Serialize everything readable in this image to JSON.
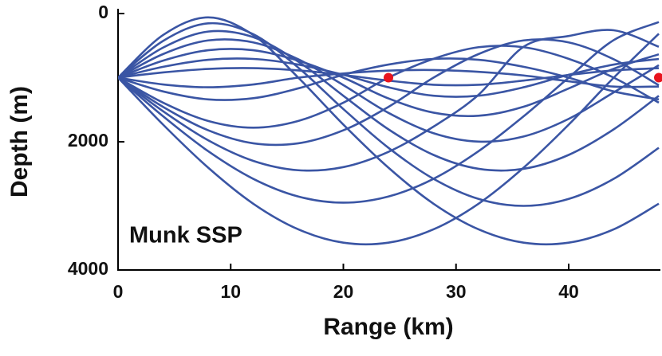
{
  "chart_data": {
    "type": "line",
    "annotation": "Munk SSP",
    "x_label": "Range (km)",
    "y_label": "Depth (m)",
    "xlim": [
      0,
      48
    ],
    "xticks": [
      0,
      10,
      20,
      30,
      40
    ],
    "ylim": [
      0,
      4000
    ],
    "yticks": [
      0,
      2000,
      4000
    ],
    "y_inverted": true,
    "x": [
      0,
      4,
      8,
      12,
      16,
      20,
      24,
      28,
      32,
      36,
      40,
      44,
      48
    ],
    "series": [
      {
        "color": "#3a55a4",
        "values": [
          1000,
          335,
          60,
          335,
          1000,
          1732,
          2404,
          2966,
          3366,
          3574,
          3574,
          3366,
          2966
        ]
      },
      {
        "color": "#3a55a4",
        "values": [
          1000,
          427,
          153,
          322,
          844,
          1490,
          2094,
          2578,
          2892,
          3000,
          2892,
          2578,
          2094
        ]
      },
      {
        "color": "#3a55a4",
        "values": [
          1000,
          531,
          281,
          368,
          750,
          1283,
          1806,
          2205,
          2422,
          2422,
          2205,
          1806,
          1283
        ]
      },
      {
        "color": "#3a55a4",
        "values": [
          1000,
          632,
          419,
          450,
          714,
          1116,
          1549,
          1866,
          1998,
          1918,
          1643,
          1230,
          806
        ]
      },
      {
        "color": "#3a55a4",
        "values": [
          1000,
          735,
          572,
          572,
          735,
          1000,
          1324,
          1546,
          1594,
          1454,
          1169,
          861,
          636
        ]
      },
      {
        "color": "#3a55a4",
        "values": [
          1000,
          831,
          721,
          708,
          796,
          955,
          1150,
          1282,
          1282,
          1150,
          955,
          796,
          708
        ]
      },
      {
        "color": "#3a55a4",
        "values": [
          1000,
          919,
          864,
          852,
          887,
          958,
          1046,
          1111,
          1111,
          1046,
          958,
          887,
          852
        ]
      },
      {
        "color": "#3a55a4",
        "values": [
          1000,
          1106,
          1150,
          1106,
          1000,
          935,
          891,
          881,
          909,
          966,
          1057,
          1139,
          1139
        ]
      },
      {
        "color": "#3a55a4",
        "values": [
          1000,
          1215,
          1339,
          1321,
          1167,
          955,
          796,
          708,
          721,
          831,
          1000,
          1215,
          1339
        ]
      },
      {
        "color": "#3a55a4",
        "values": [
          1000,
          1390,
          1675,
          1780,
          1675,
          1390,
          1000,
          706,
          525,
          525,
          706,
          1000,
          1390
        ]
      },
      {
        "color": "#3a55a4",
        "values": [
          1000,
          1456,
          1821,
          2024,
          2024,
          1821,
          1456,
          1000,
          632,
          419,
          450,
          714,
          1118
        ]
      },
      {
        "color": "#3a55a4",
        "values": [
          1000,
          1524,
          1977,
          2298,
          2444,
          2395,
          2157,
          1764,
          1267,
          518,
          350,
          261,
          518
        ]
      },
      {
        "color": "#3a55a4",
        "values": [
          1000,
          1603,
          2147,
          2578,
          2854,
          2950,
          2854,
          2578,
          2147,
          1603,
          1000,
          414,
          133
        ]
      },
      {
        "color": "#3a55a4",
        "values": [
          1000,
          1733,
          2404,
          2966,
          3366,
          3574,
          3574,
          3366,
          2966,
          2404,
          1733,
          1000,
          314
        ]
      }
    ],
    "markers": {
      "color": "#e8141e",
      "x": [
        24,
        48
      ],
      "values": [
        1000,
        1000
      ]
    }
  }
}
